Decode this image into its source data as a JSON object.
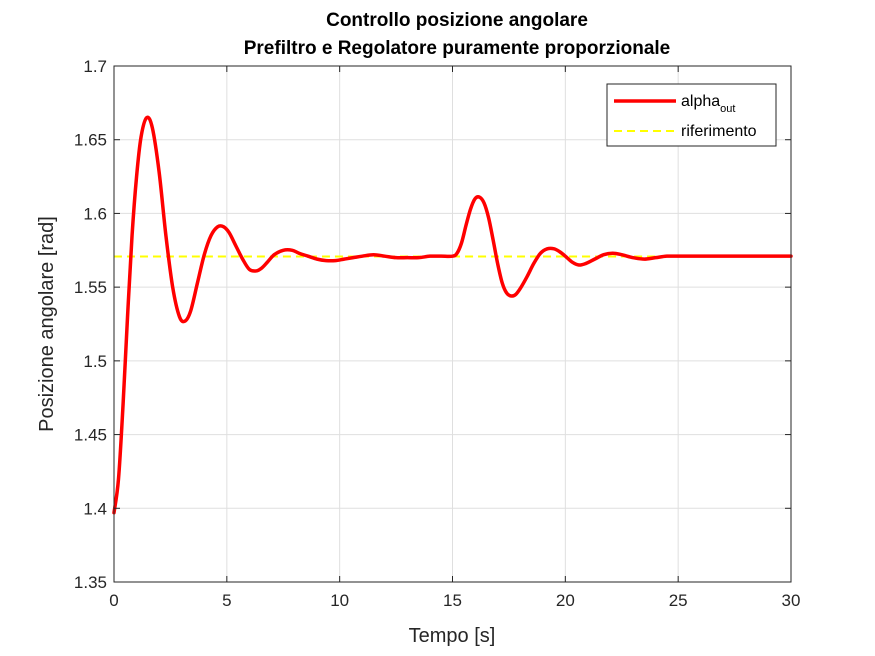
{
  "chart_data": {
    "type": "line",
    "title": [
      "Controllo posizione angolare",
      "Prefiltro e Regolatore puramente proporzionale"
    ],
    "xlabel": "Tempo [s]",
    "ylabel": "Posizione angolare [rad]",
    "xlim": [
      0,
      30
    ],
    "ylim": [
      1.35,
      1.7
    ],
    "xticks": [
      0,
      5,
      10,
      15,
      20,
      25,
      30
    ],
    "xtick_labels": [
      "0",
      "5",
      "10",
      "15",
      "20",
      "25",
      "30"
    ],
    "yticks": [
      1.35,
      1.4,
      1.45,
      1.5,
      1.55,
      1.6,
      1.65,
      1.7
    ],
    "ytick_labels": [
      "1.35",
      "1.4",
      "1.45",
      "1.5",
      "1.55",
      "1.6",
      "1.65",
      "1.7"
    ],
    "grid": true,
    "legend_position": "top-right",
    "series": [
      {
        "name": "alpha",
        "name_subscript": "out",
        "color": "#ff0000",
        "style": "solid",
        "x": [
          0,
          0.2,
          0.4,
          0.6,
          0.8,
          1.0,
          1.2,
          1.45,
          1.7,
          2.0,
          2.3,
          2.6,
          2.9,
          3.15,
          3.4,
          3.7,
          4.0,
          4.3,
          4.6,
          4.85,
          5.1,
          5.4,
          5.7,
          6.0,
          6.3,
          6.55,
          6.8,
          7.1,
          7.5,
          7.9,
          8.2,
          8.6,
          9.0,
          9.4,
          9.8,
          10.2,
          10.6,
          11.0,
          11.5,
          12.0,
          12.5,
          13.0,
          13.5,
          14.0,
          14.5,
          15.0,
          15.2,
          15.4,
          15.6,
          15.8,
          16.0,
          16.2,
          16.4,
          16.6,
          16.8,
          17.0,
          17.2,
          17.4,
          17.6,
          17.8,
          18.0,
          18.3,
          18.6,
          18.9,
          19.2,
          19.5,
          19.75,
          20.0,
          20.3,
          20.6,
          20.9,
          21.3,
          21.7,
          22.1,
          22.5,
          23.0,
          23.5,
          24.0,
          24.5,
          25.0,
          25.5,
          26.0,
          26.5,
          27.0,
          27.5,
          28.0,
          29.0,
          30.0
        ],
        "y": [
          1.397,
          1.42,
          1.47,
          1.53,
          1.585,
          1.625,
          1.652,
          1.665,
          1.658,
          1.628,
          1.585,
          1.55,
          1.53,
          1.527,
          1.534,
          1.553,
          1.572,
          1.585,
          1.591,
          1.591,
          1.587,
          1.578,
          1.569,
          1.562,
          1.561,
          1.563,
          1.567,
          1.572,
          1.575,
          1.575,
          1.573,
          1.571,
          1.569,
          1.568,
          1.568,
          1.569,
          1.57,
          1.571,
          1.572,
          1.571,
          1.57,
          1.57,
          1.57,
          1.571,
          1.571,
          1.571,
          1.573,
          1.58,
          1.592,
          1.603,
          1.61,
          1.611,
          1.607,
          1.597,
          1.582,
          1.566,
          1.553,
          1.546,
          1.544,
          1.545,
          1.549,
          1.557,
          1.566,
          1.573,
          1.576,
          1.576,
          1.574,
          1.571,
          1.567,
          1.565,
          1.566,
          1.569,
          1.572,
          1.573,
          1.572,
          1.57,
          1.569,
          1.57,
          1.571,
          1.571,
          1.571,
          1.571,
          1.571,
          1.571,
          1.571,
          1.571,
          1.571,
          1.571
        ]
      },
      {
        "name": "riferimento",
        "color": "#ffff00",
        "style": "dashed",
        "x": [
          0,
          30
        ],
        "y": [
          1.5708,
          1.5708
        ]
      }
    ]
  }
}
